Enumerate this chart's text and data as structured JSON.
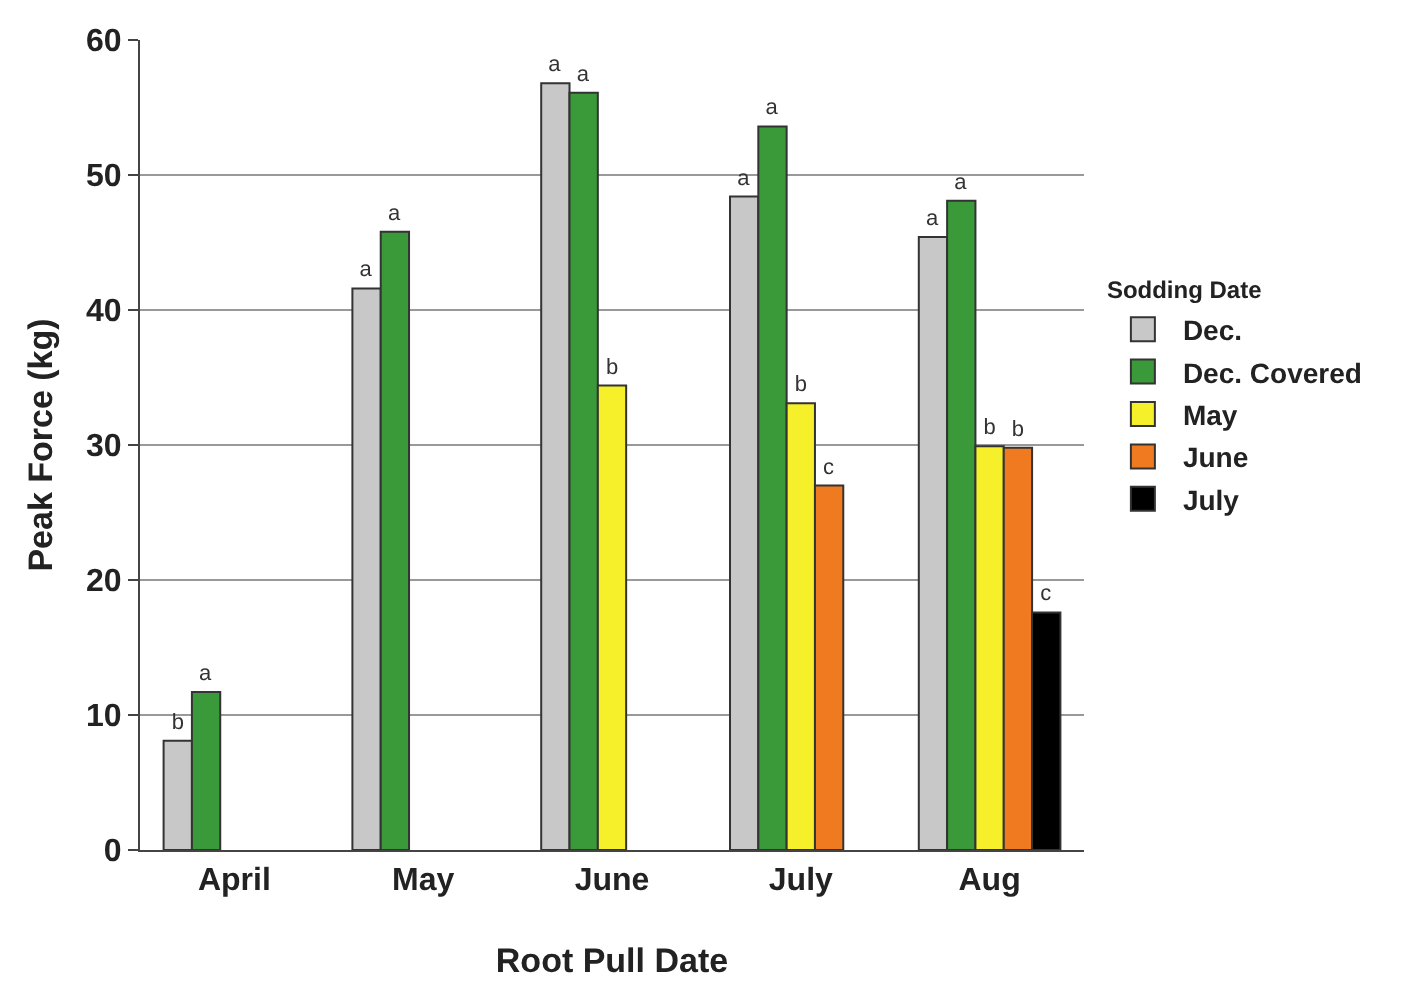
{
  "chart_data": {
    "type": "bar",
    "xlabel": "Root Pull Date",
    "ylabel": "Peak Force (kg)",
    "legend_title": "Sodding Date",
    "categories": [
      "April",
      "May",
      "June",
      "July",
      "Aug"
    ],
    "series": [
      {
        "name": "Dec.",
        "color": "#c8c8c8",
        "values": [
          8.1,
          41.6,
          56.8,
          48.4,
          45.4
        ],
        "value_labels": [
          "b",
          "a",
          "a",
          "a",
          "a"
        ]
      },
      {
        "name": "Dec. Covered",
        "color": "#3a9a3a",
        "values": [
          11.7,
          45.8,
          56.1,
          53.6,
          48.1
        ],
        "value_labels": [
          "a",
          "a",
          "a",
          "a",
          "a"
        ]
      },
      {
        "name": "May",
        "color": "#f5f02a",
        "values": [
          null,
          null,
          34.4,
          33.1,
          29.9
        ],
        "value_labels": [
          null,
          null,
          "b",
          "b",
          "b"
        ]
      },
      {
        "name": "June",
        "color": "#f07a20",
        "values": [
          null,
          null,
          null,
          27.0,
          29.8
        ],
        "value_labels": [
          null,
          null,
          null,
          "c",
          "b"
        ]
      },
      {
        "name": "July",
        "color": "#000000",
        "values": [
          null,
          null,
          null,
          null,
          17.6
        ],
        "value_labels": [
          null,
          null,
          null,
          null,
          "c"
        ]
      }
    ],
    "ylim": [
      0,
      60
    ],
    "yticks": [
      0,
      10,
      20,
      30,
      40,
      50,
      60
    ],
    "grid": "y",
    "legend": "right"
  }
}
